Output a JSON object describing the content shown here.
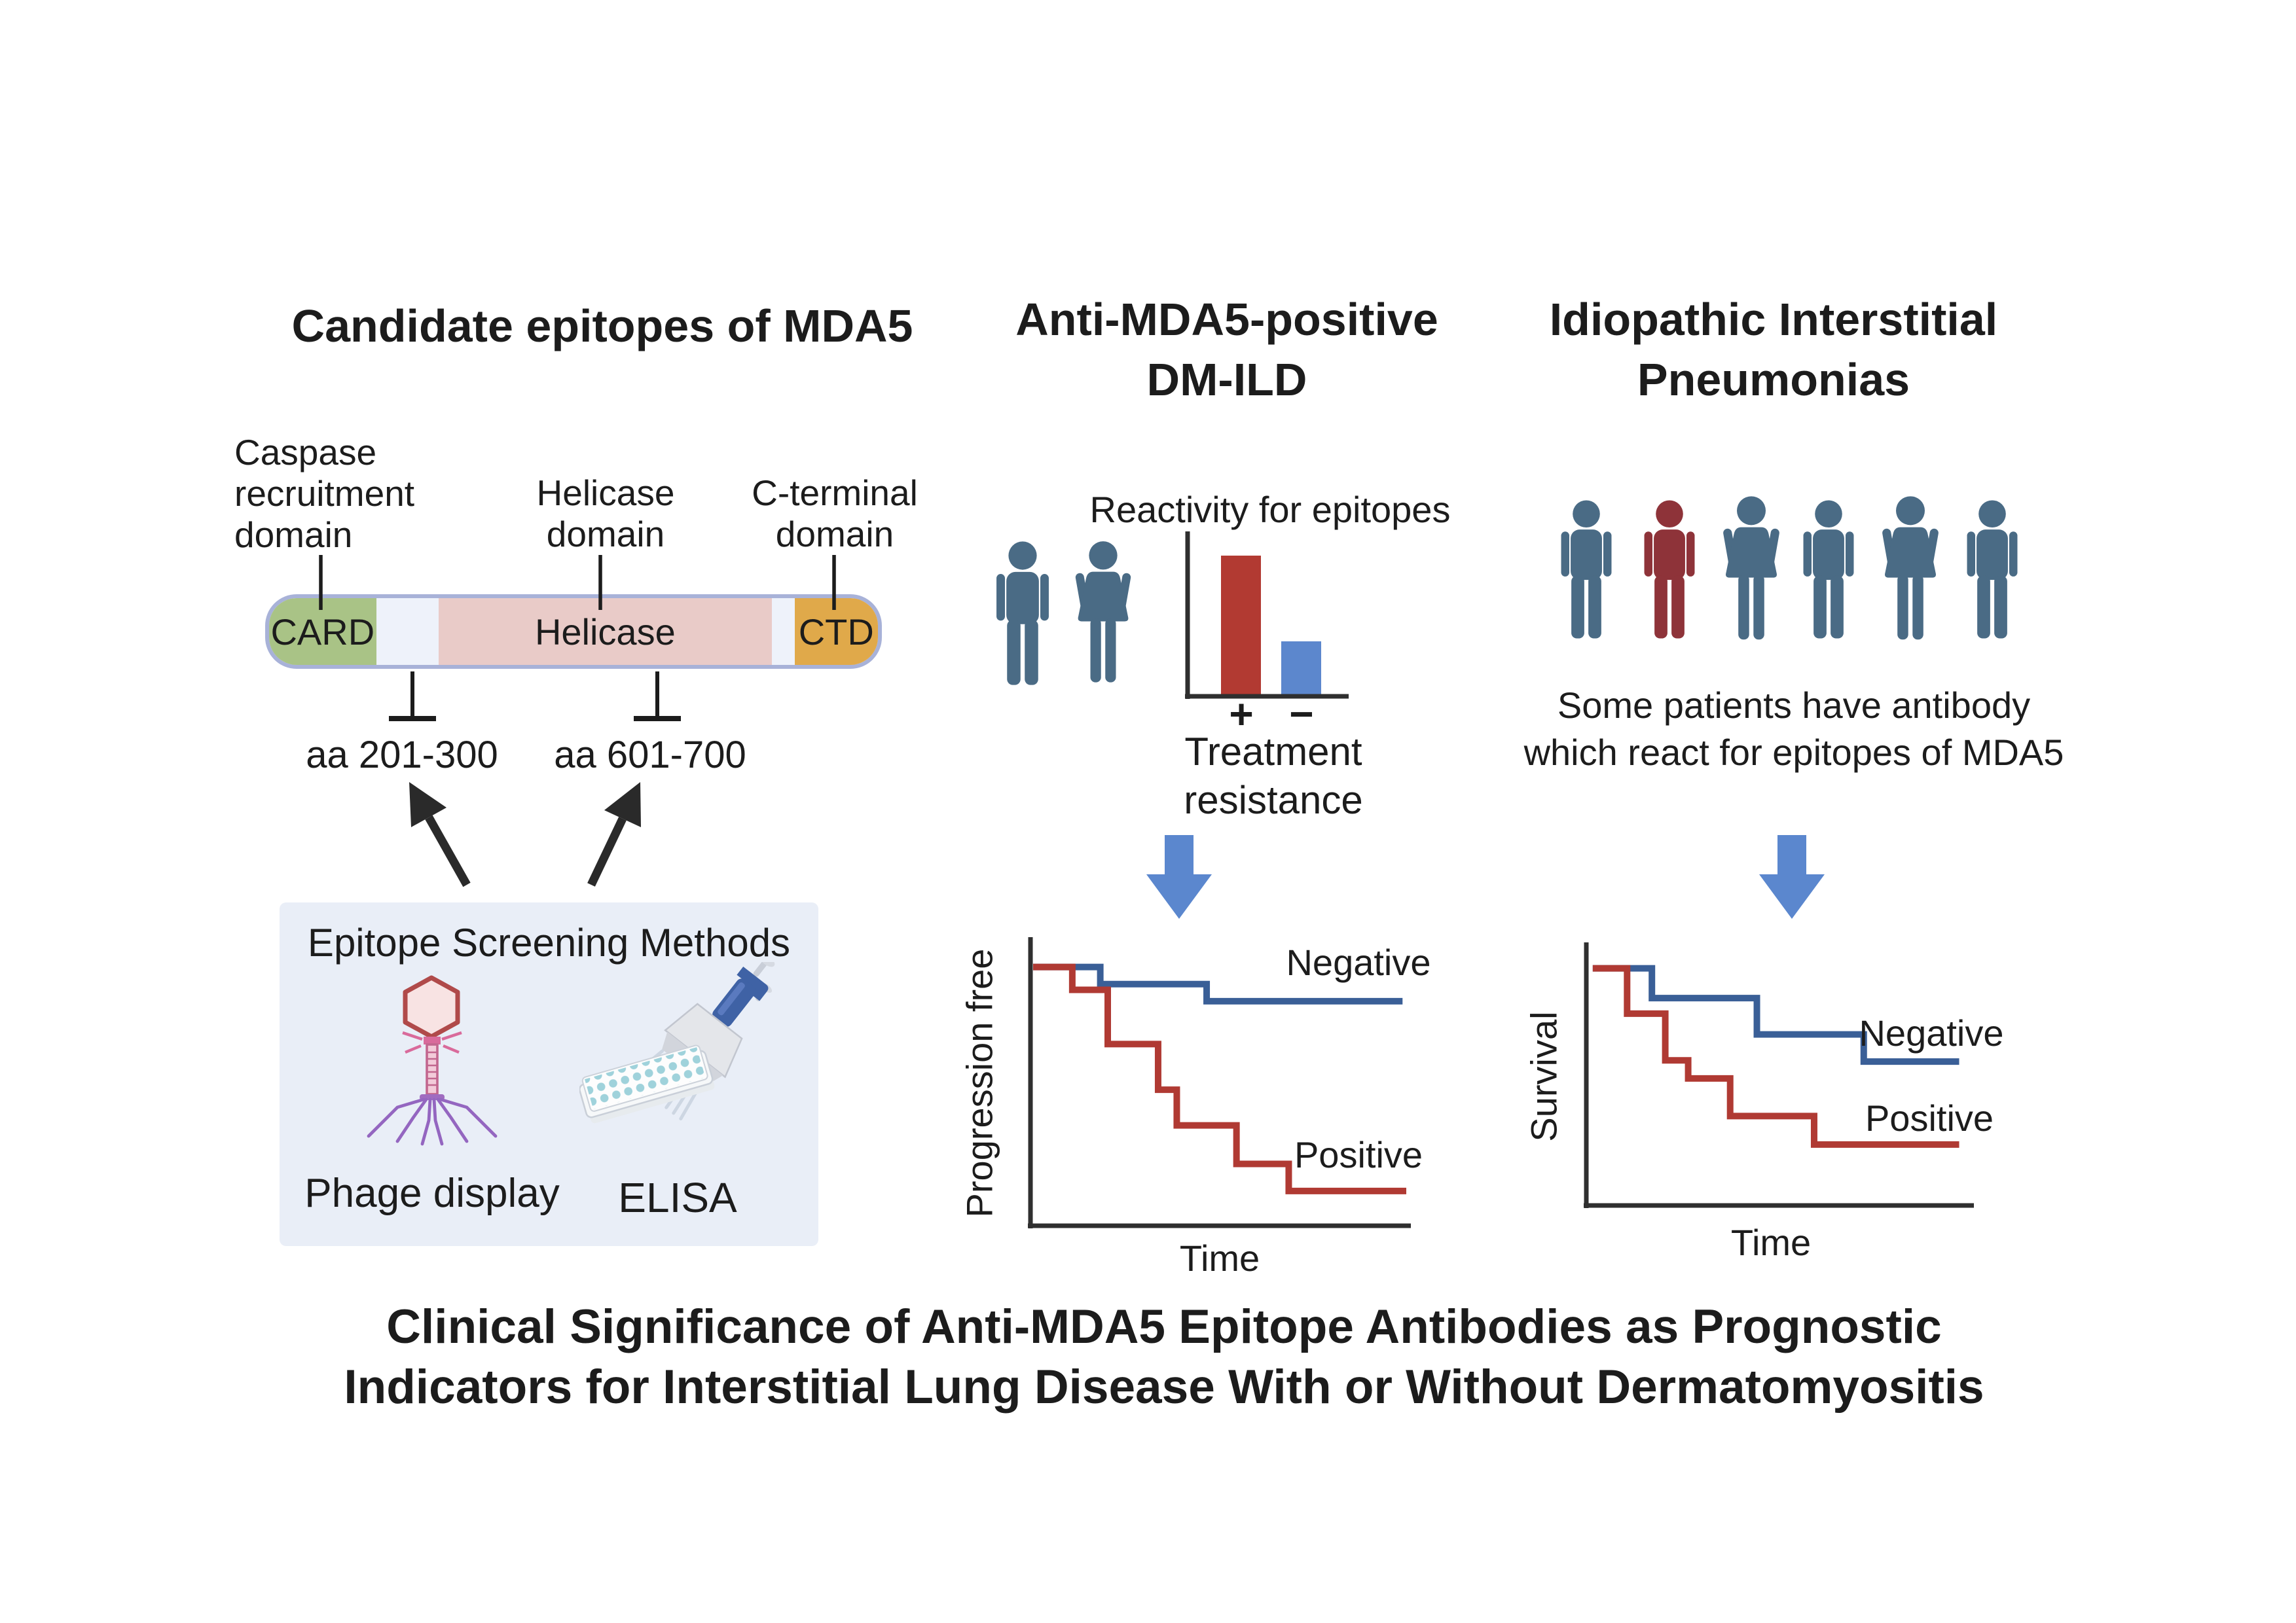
{
  "colors": {
    "ink": "#1c1c1c",
    "axis": "#2f2f2f",
    "pointer_line": "#1c1c1c",
    "black_arrow": "#2a2a2a",
    "arrow_blue": "#5b87ce",
    "person_blue": "#4a6b85",
    "person_red": "#8e3339",
    "bar_border": "#a8b2d8",
    "card_green": "#a9c386",
    "linker_light": "#eef2fa",
    "helicase_pink": "#e9cbc8",
    "ctd_orange": "#e0a94a",
    "box_bg": "#e9eef7"
  },
  "left": {
    "title": "Candidate epitopes of MDA5",
    "card_label": [
      "Caspase",
      "recruitment",
      "domain"
    ],
    "helicase_label": [
      "Helicase",
      "domain"
    ],
    "ctd_label": [
      "C-terminal",
      "domain"
    ],
    "segments": {
      "card": "CARD",
      "helicase": "Helicase",
      "ctd": "CTD"
    },
    "epitope_left": "aa 201-300",
    "epitope_right": "aa 601-700",
    "box_title": "Epitope Screening Methods",
    "method_phage": "Phage display",
    "method_elisa": "ELISA"
  },
  "middle": {
    "title": [
      "Anti-MDA5-positive",
      "DM-ILD"
    ],
    "chart_title": "Reactivity for epitopes",
    "plus": "+",
    "minus": "−",
    "axis_caption": [
      "Treatment",
      "resistance"
    ],
    "people": [
      {
        "type": "man",
        "color_hex": "#4a6b85"
      },
      {
        "type": "woman",
        "color_hex": "#4a6b85"
      }
    ],
    "km": {
      "ylabel": "Progression free",
      "xlabel": "Time",
      "negative": "Negative",
      "positive": "Positive"
    }
  },
  "right": {
    "title": [
      "Idiopathic Interstitial",
      "Pneumonias"
    ],
    "caption": [
      "Some patients have antibody",
      "which react for epitopes of MDA5"
    ],
    "people": [
      {
        "type": "man",
        "color_hex": "#4a6b85"
      },
      {
        "type": "man",
        "color_hex": "#8e3339"
      },
      {
        "type": "woman",
        "color_hex": "#4a6b85"
      },
      {
        "type": "man",
        "color_hex": "#4a6b85"
      },
      {
        "type": "woman",
        "color_hex": "#4a6b85"
      },
      {
        "type": "man",
        "color_hex": "#4a6b85"
      }
    ],
    "km": {
      "ylabel": "Survival",
      "xlabel": "Time",
      "negative": "Negative",
      "positive": "Positive"
    }
  },
  "footer": {
    "line1": "Clinical Significance of Anti-MDA5 Epitope Antibodies as Prognostic",
    "line2": "Indicators for Interstitial Lung Disease With or Without Dermatomyositis"
  },
  "chart_data": [
    {
      "type": "bar",
      "title": "Reactivity for epitopes",
      "categories": [
        "+",
        "−"
      ],
      "values": [
        0.86,
        0.33
      ],
      "value_note": "relative antibody reactivity, schematic (no numeric axis shown)",
      "colors": [
        "#b23a32",
        "#5c87cd"
      ],
      "xlabel": "Treatment resistance",
      "ylabel": ""
    },
    {
      "type": "line",
      "subtype": "kaplan-meier-schematic",
      "ylabel": "Progression free",
      "xlabel": "Time",
      "axis_ticks": "none",
      "legend_position": "inline-right",
      "series": [
        {
          "name": "Negative",
          "color": "#3a5f97",
          "points_norm": [
            [
              0,
              0.1
            ],
            [
              0.18,
              0.1
            ],
            [
              0.18,
              0.16
            ],
            [
              0.465,
              0.16
            ],
            [
              0.465,
              0.22
            ],
            [
              0.99,
              0.22
            ]
          ]
        },
        {
          "name": "Positive",
          "color": "#b03a33",
          "points_norm": [
            [
              0,
              0.1
            ],
            [
              0.105,
              0.1
            ],
            [
              0.105,
              0.18
            ],
            [
              0.2,
              0.18
            ],
            [
              0.2,
              0.37
            ],
            [
              0.335,
              0.37
            ],
            [
              0.335,
              0.53
            ],
            [
              0.385,
              0.53
            ],
            [
              0.385,
              0.655
            ],
            [
              0.545,
              0.655
            ],
            [
              0.545,
              0.79
            ],
            [
              0.685,
              0.79
            ],
            [
              0.685,
              0.885
            ],
            [
              1,
              0.885
            ]
          ]
        }
      ]
    },
    {
      "type": "line",
      "subtype": "kaplan-meier-schematic",
      "ylabel": "Survival",
      "xlabel": "Time",
      "axis_ticks": "none",
      "legend_position": "inline-right",
      "series": [
        {
          "name": "Negative",
          "color": "#3a5f97",
          "points_norm": [
            [
              0.01,
              0.095
            ],
            [
              0.165,
              0.095
            ],
            [
              0.165,
              0.21
            ],
            [
              0.44,
              0.21
            ],
            [
              0.44,
              0.35
            ],
            [
              0.72,
              0.35
            ],
            [
              0.72,
              0.455
            ],
            [
              0.97,
              0.455
            ]
          ]
        },
        {
          "name": "Positive",
          "color": "#b03a33",
          "points_norm": [
            [
              0.01,
              0.095
            ],
            [
              0.1,
              0.095
            ],
            [
              0.1,
              0.27
            ],
            [
              0.2,
              0.27
            ],
            [
              0.2,
              0.45
            ],
            [
              0.26,
              0.45
            ],
            [
              0.26,
              0.52
            ],
            [
              0.37,
              0.52
            ],
            [
              0.37,
              0.665
            ],
            [
              0.59,
              0.665
            ],
            [
              0.59,
              0.775
            ],
            [
              0.97,
              0.775
            ]
          ]
        }
      ]
    }
  ]
}
